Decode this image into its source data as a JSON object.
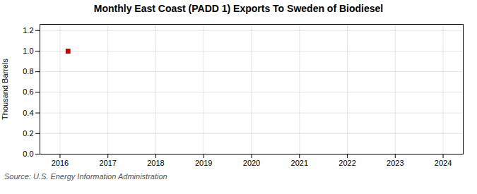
{
  "chart_data": {
    "type": "scatter",
    "title": "Monthly East Coast (PADD 1) Exports To Sweden of Biodiesel",
    "ylabel": "Thousand Barrels",
    "source": "Source: U.S. Energy Information Administration",
    "x": [
      2016.167
    ],
    "values": [
      1.0
    ],
    "color": "#cc0000",
    "marker": "square",
    "xlim": [
      2015.58,
      2024.42
    ],
    "xticks": [
      2016,
      2017,
      2018,
      2019,
      2020,
      2021,
      2022,
      2023,
      2024
    ],
    "ylim": [
      0.0,
      1.26
    ],
    "yticks": [
      {
        "value": 0.0,
        "label": "0.0"
      },
      0.2,
      0.4,
      0.6,
      0.8,
      {
        "value": 1.0,
        "label": "1.0"
      },
      1.2
    ],
    "grid": true
  }
}
